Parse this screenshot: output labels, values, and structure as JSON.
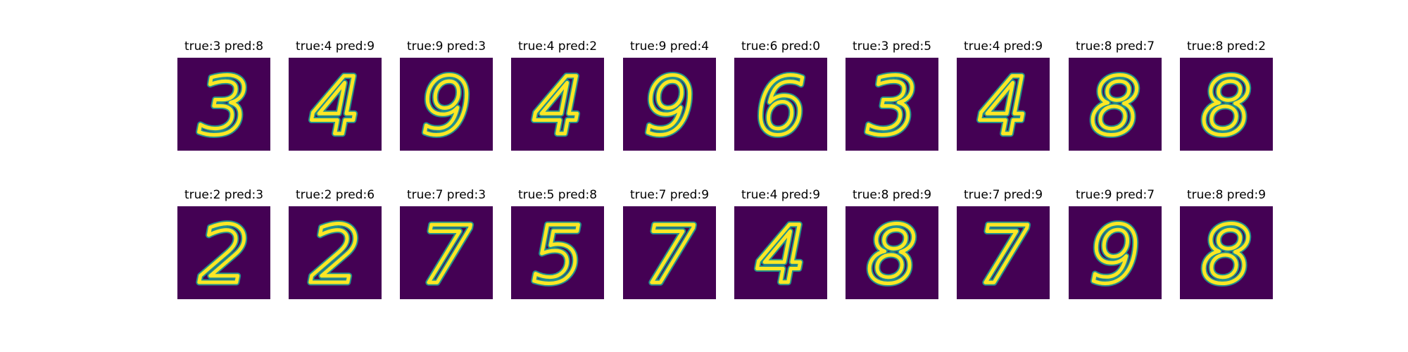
{
  "panels": [
    {
      "title": "true:3 pred:8",
      "glyph": "3"
    },
    {
      "title": "true:4 pred:9",
      "glyph": "4"
    },
    {
      "title": "true:9 pred:3",
      "glyph": "9"
    },
    {
      "title": "true:4 pred:2",
      "glyph": "4"
    },
    {
      "title": "true:9 pred:4",
      "glyph": "9"
    },
    {
      "title": "true:6 pred:0",
      "glyph": "6"
    },
    {
      "title": "true:3 pred:5",
      "glyph": "3"
    },
    {
      "title": "true:4 pred:9",
      "glyph": "4"
    },
    {
      "title": "true:8 pred:7",
      "glyph": "8"
    },
    {
      "title": "true:8 pred:2",
      "glyph": "8"
    },
    {
      "title": "true:2 pred:3",
      "glyph": "2"
    },
    {
      "title": "true:2 pred:6",
      "glyph": "2"
    },
    {
      "title": "true:7 pred:3",
      "glyph": "7"
    },
    {
      "title": "true:5 pred:8",
      "glyph": "5"
    },
    {
      "title": "true:7 pred:9",
      "glyph": "7"
    },
    {
      "title": "true:4 pred:9",
      "glyph": "4"
    },
    {
      "title": "true:8 pred:9",
      "glyph": "8"
    },
    {
      "title": "true:7 pred:9",
      "glyph": "7"
    },
    {
      "title": "true:9 pred:7",
      "glyph": "9"
    },
    {
      "title": "true:8 pred:9",
      "glyph": "8"
    }
  ],
  "colors": {
    "background": "#440154",
    "stroke": "#fde725",
    "edge": "#21918c"
  }
}
